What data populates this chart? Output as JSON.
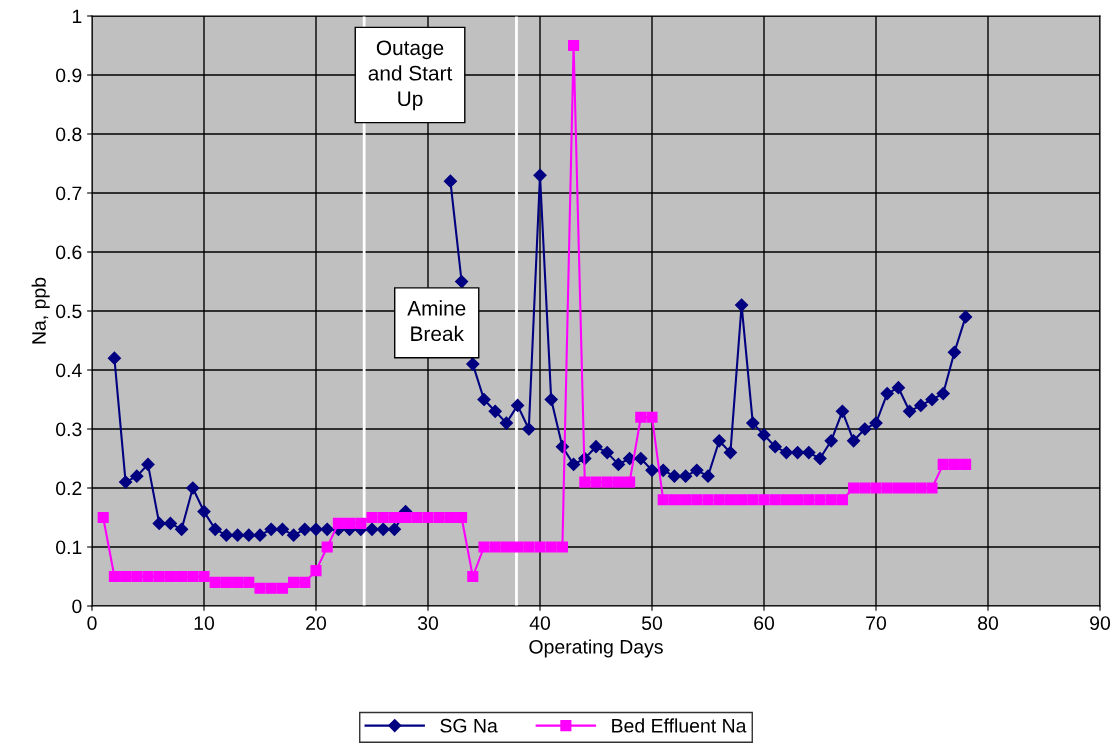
{
  "chart_data": {
    "type": "line",
    "xlabel": "Operating Days",
    "ylabel": "Na, ppb",
    "xlim": [
      0,
      90
    ],
    "xticks": [
      0,
      10,
      20,
      30,
      40,
      50,
      60,
      70,
      80,
      90
    ],
    "ylim": [
      0,
      1
    ],
    "yticks": [
      0,
      0.1,
      0.2,
      0.3,
      0.4,
      0.5,
      0.6,
      0.7,
      0.8,
      0.9,
      1
    ],
    "grid": true,
    "legend": "bottom",
    "x": [
      1,
      2,
      3,
      4,
      5,
      6,
      7,
      8,
      9,
      10,
      11,
      12,
      13,
      14,
      15,
      16,
      17,
      18,
      19,
      20,
      21,
      22,
      23,
      24,
      25,
      26,
      27,
      28,
      29,
      30,
      31,
      32,
      33,
      34,
      35,
      36,
      37,
      38,
      39,
      40,
      41,
      42,
      43,
      44,
      45,
      46,
      47,
      48,
      49,
      50,
      51,
      52,
      53,
      54,
      55,
      56,
      57,
      58,
      59,
      60,
      61,
      62,
      63,
      64,
      65,
      66,
      67,
      68,
      69,
      70,
      71,
      72,
      73,
      74,
      75,
      76,
      77,
      78
    ],
    "series": [
      {
        "name": "SG Na",
        "color": "#000080",
        "marker": "diamond",
        "values": [
          null,
          0.42,
          0.21,
          0.22,
          0.24,
          0.14,
          0.14,
          0.13,
          0.2,
          0.16,
          0.13,
          0.12,
          0.12,
          0.12,
          0.12,
          0.13,
          0.13,
          0.12,
          0.13,
          0.13,
          0.13,
          0.13,
          0.13,
          0.13,
          0.13,
          0.13,
          0.13,
          0.16,
          null,
          null,
          null,
          0.72,
          0.55,
          0.41,
          0.35,
          0.33,
          0.31,
          0.34,
          0.3,
          0.73,
          0.35,
          0.27,
          0.24,
          0.25,
          0.27,
          0.26,
          0.24,
          0.25,
          0.25,
          0.23,
          0.23,
          0.22,
          0.22,
          0.23,
          0.22,
          0.28,
          0.26,
          0.51,
          0.31,
          0.29,
          0.27,
          0.26,
          0.26,
          0.26,
          0.25,
          0.28,
          0.33,
          0.28,
          0.3,
          0.31,
          0.36,
          0.37,
          0.33,
          0.34,
          0.35,
          0.36,
          0.43,
          0.49
        ]
      },
      {
        "name": "Bed Effluent Na",
        "color": "#ff00ff",
        "marker": "square",
        "values": [
          0.15,
          0.05,
          0.05,
          0.05,
          0.05,
          0.05,
          0.05,
          0.05,
          0.05,
          0.05,
          0.04,
          0.04,
          0.04,
          0.04,
          0.03,
          0.03,
          0.03,
          0.04,
          0.04,
          0.06,
          0.1,
          0.14,
          0.14,
          0.14,
          0.15,
          0.15,
          0.15,
          0.15,
          0.15,
          0.15,
          0.15,
          0.15,
          0.15,
          0.05,
          0.1,
          0.1,
          0.1,
          0.1,
          0.1,
          0.1,
          0.1,
          0.1,
          0.95,
          0.21,
          0.21,
          0.21,
          0.21,
          0.21,
          0.32,
          0.32,
          0.18,
          0.18,
          0.18,
          0.18,
          0.18,
          0.18,
          0.18,
          0.18,
          0.18,
          0.18,
          0.18,
          0.18,
          0.18,
          0.18,
          0.18,
          0.18,
          0.18,
          0.2,
          0.2,
          0.2,
          0.2,
          0.2,
          0.2,
          0.2,
          0.2,
          0.24,
          0.24,
          0.24
        ]
      }
    ],
    "ref_lines": [
      {
        "axis": "x",
        "value": 24.3,
        "color": "#ffffff"
      },
      {
        "axis": "x",
        "value": 37.9,
        "color": "#ffffff"
      }
    ],
    "annotations": [
      "Outage\nand Start\nUp",
      "Amine\nBreak"
    ]
  }
}
